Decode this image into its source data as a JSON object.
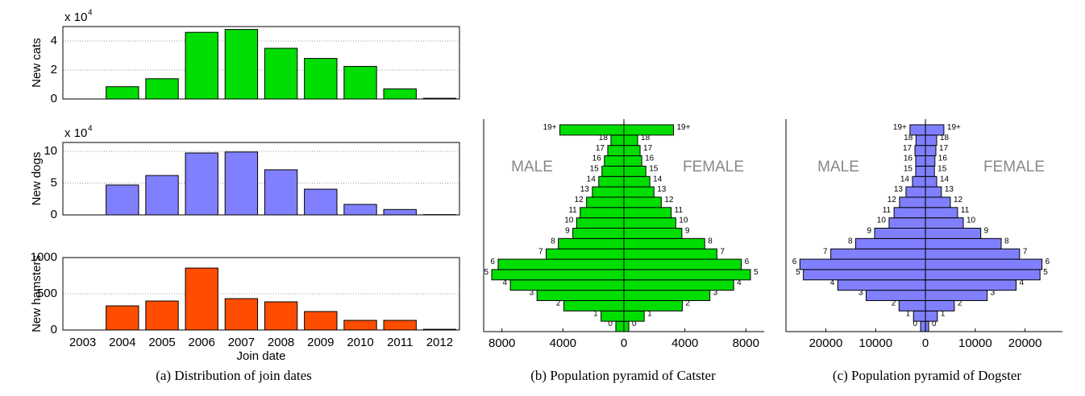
{
  "chart_data": [
    {
      "type": "bar",
      "ylabel": "New cats",
      "scale_label": "x 10",
      "scale_exponent": "4",
      "color": "#00dd00",
      "values": [
        0,
        0.85,
        1.4,
        4.6,
        4.8,
        3.5,
        2.8,
        2.25,
        0.7,
        0.05
      ],
      "ylim": [
        0,
        5
      ],
      "yticks": [
        0,
        2,
        4
      ],
      "grid": true
    },
    {
      "type": "bar",
      "ylabel": "New dogs",
      "scale_label": "x 10",
      "scale_exponent": "4",
      "color": "#8080ff",
      "values": [
        0,
        4.7,
        6.2,
        9.75,
        9.9,
        7.1,
        4.05,
        1.65,
        0.85,
        0.05
      ],
      "ylim": [
        0,
        11.4
      ],
      "yticks": [
        0,
        5,
        10
      ],
      "grid": true
    },
    {
      "type": "bar",
      "ylabel": "New hamsters",
      "xlabel": "Join date",
      "color": "#ff4d00",
      "categories": [
        "2003",
        "2004",
        "2005",
        "2006",
        "2007",
        "2008",
        "2009",
        "2010",
        "2011",
        "2012"
      ],
      "values": [
        0,
        333,
        400,
        855,
        433,
        389,
        255,
        133,
        133,
        10
      ],
      "ylim": [
        0,
        1000
      ],
      "yticks": [
        0,
        500,
        1000
      ],
      "grid": true
    },
    {
      "type": "pyramid",
      "categories": [
        "0",
        "1",
        "2",
        "3",
        "4",
        "5",
        "6",
        "7",
        "8",
        "9",
        "10",
        "11",
        "12",
        "13",
        "14",
        "15",
        "16",
        "17",
        "18",
        "19+"
      ],
      "series": [
        {
          "name": "MALE",
          "color": "#00dd00",
          "values": [
            -530,
            -1500,
            -3940,
            -5700,
            -7450,
            -8670,
            -8250,
            -5100,
            -4300,
            -3350,
            -3100,
            -2870,
            -2450,
            -2070,
            -1650,
            -1440,
            -1280,
            -1060,
            -850,
            -4200
          ]
        },
        {
          "name": "FEMALE",
          "color": "#00dd00",
          "values": [
            320,
            1330,
            3830,
            5640,
            7200,
            8300,
            7700,
            6100,
            5300,
            3800,
            3400,
            3100,
            2450,
            1970,
            1700,
            1440,
            1170,
            1060,
            900,
            3250
          ]
        }
      ],
      "xlim": [
        -9200,
        9200
      ],
      "xticks": [
        {
          "value": -8000,
          "label": "8000"
        },
        {
          "value": -4000,
          "label": "4000"
        },
        0,
        4000,
        8000
      ]
    },
    {
      "type": "pyramid",
      "categories": [
        "0",
        "1",
        "2",
        "3",
        "4",
        "5",
        "6",
        "7",
        "8",
        "9",
        "10",
        "11",
        "12",
        "13",
        "14",
        "15",
        "16",
        "17",
        "18",
        "19+"
      ],
      "series": [
        {
          "name": "MALE",
          "color": "#8080ff",
          "values": [
            -970,
            -2400,
            -5300,
            -11900,
            -17600,
            -24500,
            -25200,
            -19000,
            -14000,
            -10200,
            -7300,
            -6300,
            -5200,
            -3900,
            -2600,
            -1950,
            -1950,
            -2100,
            -1900,
            -3100
          ]
        },
        {
          "name": "FEMALE",
          "color": "#8080ff",
          "values": [
            650,
            2400,
            5800,
            12400,
            18200,
            23000,
            23400,
            18900,
            15200,
            11100,
            7600,
            6450,
            5000,
            3200,
            2260,
            1800,
            1900,
            2100,
            2260,
            3700
          ]
        }
      ],
      "xlim": [
        -28000,
        27500
      ],
      "xticks": [
        {
          "value": -20000,
          "label": "20000"
        },
        {
          "value": -10000,
          "label": "10000"
        },
        0,
        10000,
        20000
      ]
    }
  ],
  "captions": [
    "(a) Distribution of join dates",
    "(b) Population pyramid of Catster",
    "(c) Population pyramid of Dogster"
  ]
}
